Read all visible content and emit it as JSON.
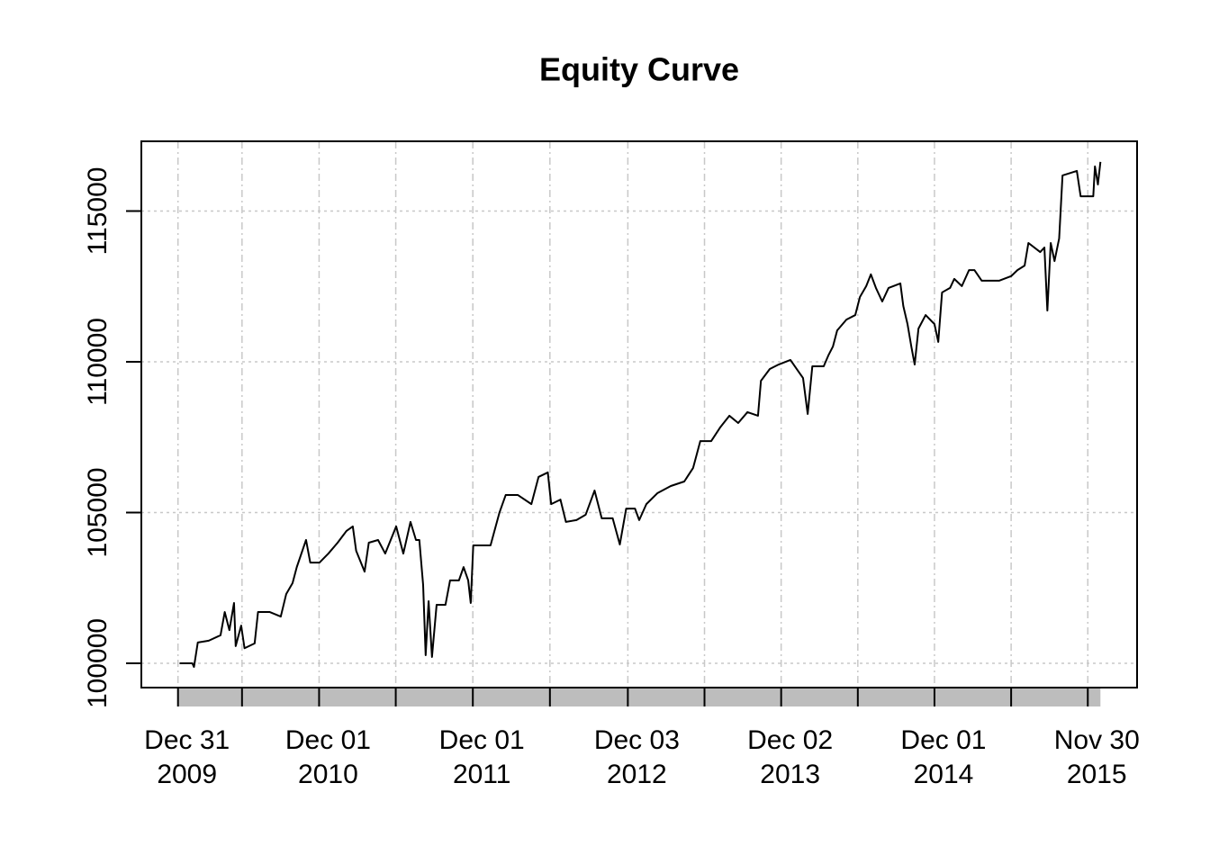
{
  "chart_data": {
    "type": "line",
    "title": "Equity Curve",
    "x": [
      "2010-01-04",
      "2010-02-03",
      "2010-02-07",
      "2010-02-16",
      "2010-03-14",
      "2010-04-11",
      "2010-04-21",
      "2010-05-02",
      "2010-05-13",
      "2010-05-17",
      "2010-05-30",
      "2010-06-07",
      "2010-07-01",
      "2010-07-09",
      "2010-08-06",
      "2010-09-01",
      "2010-09-14",
      "2010-09-29",
      "2010-10-09",
      "2010-10-31",
      "2010-11-10",
      "2010-12-02",
      "2010-12-23",
      "2011-01-14",
      "2011-02-04",
      "2011-02-19",
      "2011-02-27",
      "2011-03-19",
      "2011-03-29",
      "2011-04-20",
      "2011-05-07",
      "2011-06-02",
      "2011-06-19",
      "2011-07-06",
      "2011-07-19",
      "2011-07-27",
      "2011-08-05",
      "2011-08-11",
      "2011-08-18",
      "2011-08-26",
      "2011-09-06",
      "2011-09-27",
      "2011-10-08",
      "2011-10-29",
      "2011-11-09",
      "2011-11-20",
      "2011-11-26",
      "2011-12-02",
      "2012-01-12",
      "2012-02-02",
      "2012-02-17",
      "2012-03-17",
      "2012-04-18",
      "2012-05-05",
      "2012-05-27",
      "2012-06-04",
      "2012-06-26",
      "2012-07-09",
      "2012-08-03",
      "2012-08-25",
      "2012-09-15",
      "2012-10-02",
      "2012-10-28",
      "2012-11-14",
      "2012-11-29",
      "2012-12-20",
      "2012-12-30",
      "2013-01-16",
      "2013-02-11",
      "2013-03-15",
      "2013-04-16",
      "2013-05-07",
      "2013-05-24",
      "2013-06-19",
      "2013-07-10",
      "2013-08-01",
      "2013-08-22",
      "2013-09-13",
      "2013-10-08",
      "2013-10-15",
      "2013-11-05",
      "2013-11-26",
      "2013-12-24",
      "2014-01-08",
      "2014-01-23",
      "2014-02-03",
      "2014-02-14",
      "2014-03-13",
      "2014-03-24",
      "2014-04-04",
      "2014-04-14",
      "2014-05-06",
      "2014-05-27",
      "2014-06-07",
      "2014-06-22",
      "2014-07-03",
      "2014-07-15",
      "2014-07-30",
      "2014-08-14",
      "2014-09-11",
      "2014-09-18",
      "2014-09-28",
      "2014-10-07",
      "2014-10-15",
      "2014-10-24",
      "2014-11-10",
      "2014-12-01",
      "2014-12-10",
      "2014-12-19",
      "2015-01-07",
      "2015-01-17",
      "2015-02-04",
      "2015-02-21",
      "2015-03-06",
      "2015-03-23",
      "2015-05-04",
      "2015-06-01",
      "2015-06-16",
      "2015-07-03",
      "2015-07-12",
      "2015-08-09",
      "2015-08-19",
      "2015-08-26",
      "2015-09-03",
      "2015-09-12",
      "2015-09-23",
      "2015-10-01",
      "2015-11-04",
      "2015-11-13",
      "2015-12-13",
      "2015-12-17",
      "2015-12-24",
      "2015-12-30"
    ],
    "values": [
      100000,
      100000,
      99880,
      100690,
      100750,
      100930,
      101700,
      101100,
      102000,
      100570,
      101250,
      100500,
      100660,
      101700,
      101700,
      101550,
      102300,
      102660,
      103190,
      104090,
      103340,
      103340,
      103640,
      104000,
      104390,
      104540,
      103730,
      103040,
      104000,
      104090,
      103640,
      104540,
      103640,
      104690,
      104090,
      104090,
      102600,
      100270,
      102060,
      100210,
      101940,
      101940,
      102750,
      102750,
      103190,
      102750,
      102000,
      103910,
      103910,
      104990,
      105580,
      105580,
      105280,
      106180,
      106330,
      105280,
      105430,
      104690,
      104750,
      104930,
      105730,
      104810,
      104810,
      103940,
      105130,
      105130,
      104750,
      105280,
      105640,
      105880,
      106030,
      106480,
      107370,
      107370,
      107820,
      108210,
      107970,
      108330,
      108210,
      109370,
      109760,
      109910,
      110060,
      109760,
      109460,
      108270,
      109850,
      109850,
      110210,
      110510,
      111040,
      111400,
      111550,
      112150,
      112510,
      112900,
      112450,
      112000,
      112450,
      112600,
      111850,
      111250,
      110510,
      109910,
      111100,
      111550,
      111250,
      110660,
      112300,
      112450,
      112750,
      112510,
      113040,
      113040,
      112690,
      112690,
      112840,
      113040,
      113190,
      113940,
      113640,
      113790,
      111700,
      113940,
      113340,
      114090,
      116180,
      116330,
      115490,
      115490,
      116480,
      115880,
      116630
    ],
    "color": "#000000",
    "xlim": [
      "2009-10-05",
      "2016-03-26"
    ],
    "xticks": [
      {
        "value": "2009-12-31",
        "label": [
          "Dec 31",
          "2009"
        ]
      },
      {
        "value": "2010-12-01",
        "label": [
          "Dec 01",
          "2010"
        ]
      },
      {
        "value": "2011-12-01",
        "label": [
          "Dec 01",
          "2011"
        ]
      },
      {
        "value": "2012-12-03",
        "label": [
          "Dec 03",
          "2012"
        ]
      },
      {
        "value": "2013-12-02",
        "label": [
          "Dec 02",
          "2013"
        ]
      },
      {
        "value": "2014-12-01",
        "label": [
          "Dec 01",
          "2014"
        ]
      },
      {
        "value": "2015-11-30",
        "label": [
          "Nov 30",
          "2015"
        ]
      }
    ],
    "xminorticks": [
      "2010-06-01",
      "2011-06-01",
      "2012-06-01",
      "2013-06-03",
      "2014-06-02",
      "2015-06-01"
    ],
    "ylim": [
      99194,
      117313
    ],
    "yticks": [
      100000,
      105000,
      110000,
      115000
    ],
    "grid": true
  }
}
